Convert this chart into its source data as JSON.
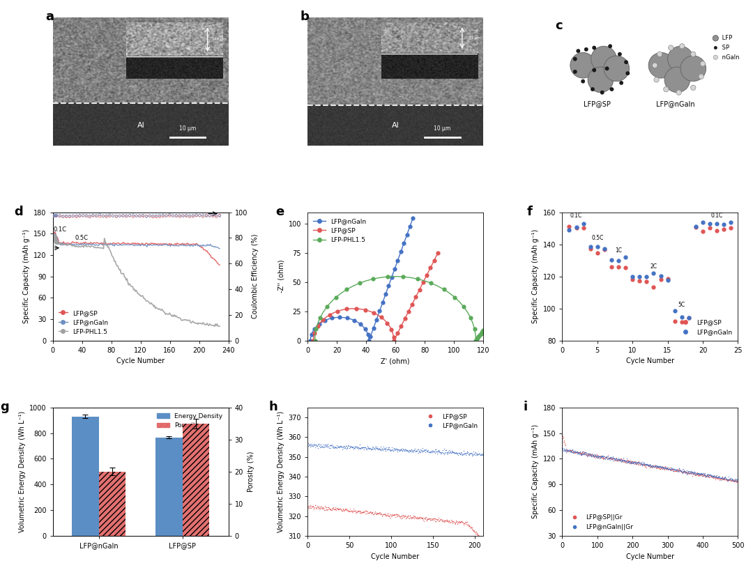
{
  "panel_d": {
    "xlabel": "Cycle Number",
    "ylabel_left": "Specific Capacity (mAh g⁻¹)",
    "ylabel_right": "Coulombic Efficiency (%)",
    "xlim": [
      0,
      240
    ],
    "ylim_left": [
      0,
      180
    ],
    "ylim_right": [
      0,
      100
    ],
    "yticks_left": [
      0,
      30,
      60,
      90,
      120,
      150,
      180
    ],
    "yticks_right": [
      0,
      20,
      40,
      60,
      80,
      100
    ],
    "xticks": [
      0,
      40,
      80,
      120,
      160,
      200,
      240
    ],
    "colors": [
      "#e05555",
      "#7090c0",
      "#a0a0a0"
    ]
  },
  "panel_e": {
    "xlabel": "Z' (ohm)",
    "ylabel": "-Z'' (ohm)",
    "xlim": [
      0,
      120
    ],
    "ylim": [
      0,
      110
    ],
    "yticks": [
      0,
      25,
      50,
      75,
      100
    ],
    "xticks": [
      0,
      20,
      40,
      60,
      80,
      100,
      120
    ],
    "legend": [
      "LFP@nGaIn",
      "LFP@SP",
      "LFP-PHL1.5"
    ],
    "colors": [
      "#4472c4",
      "#e05555",
      "#5aaa5a"
    ]
  },
  "panel_f": {
    "xlabel": "Cycle Number",
    "ylabel": "Specific Capacity (mAh g⁻¹)",
    "xlim": [
      0,
      25
    ],
    "ylim": [
      80,
      160
    ],
    "yticks": [
      80,
      100,
      120,
      140,
      160
    ],
    "xticks": [
      0,
      5,
      10,
      15,
      20,
      25
    ],
    "rate_labels": [
      "0.1C",
      "0.5C",
      "1C",
      "2C",
      "5C",
      "0.1C"
    ],
    "legend": [
      "LFP@SP",
      "LFP@nGaIn"
    ],
    "colors": [
      "#e05555",
      "#4472c4"
    ]
  },
  "panel_g": {
    "categories": [
      "LFP@nGaIn",
      "LFP@SP"
    ],
    "energy_density": [
      930,
      765
    ],
    "energy_density_errors": [
      12,
      8
    ],
    "porosity_vals": [
      20,
      35
    ],
    "porosity_errors": [
      1.2,
      1.5
    ],
    "ylabel_left": "Volumetric Energy Density (Wh L⁻¹)",
    "ylabel_right": "Porosity (%)",
    "ylim_left": [
      0,
      1000
    ],
    "ylim_right": [
      0,
      40
    ],
    "yticks_left": [
      0,
      200,
      400,
      600,
      800,
      1000
    ],
    "yticks_right": [
      0,
      10,
      20,
      30,
      40
    ],
    "colors_blue": "#5b8ec4",
    "colors_red": "#e06060"
  },
  "panel_h": {
    "xlabel": "Cycle Number",
    "ylabel": "Volumetric Energy Density (Wh L⁻¹)",
    "xlim": [
      0,
      210
    ],
    "ylim": [
      310,
      375
    ],
    "yticks": [
      310,
      320,
      330,
      340,
      350,
      360,
      370
    ],
    "xticks": [
      0,
      50,
      100,
      150,
      200
    ],
    "legend": [
      "LFP@SP",
      "LFP@nGaIn"
    ],
    "colors": [
      "#e05555",
      "#4472c4"
    ]
  },
  "panel_i": {
    "xlabel": "Cycle Number",
    "ylabel": "Specific Capacity (mAh g⁻¹)",
    "xlim": [
      0,
      500
    ],
    "ylim": [
      30,
      180
    ],
    "yticks": [
      30,
      60,
      90,
      120,
      150,
      180
    ],
    "xticks": [
      0,
      100,
      200,
      300,
      400,
      500
    ],
    "legend": [
      "LFP@SP||Gr",
      "LFP@nGaIn||Gr"
    ],
    "colors": [
      "#e05555",
      "#4472c4"
    ]
  },
  "bg_color": "#ffffff",
  "panel_label_fontsize": 13,
  "axis_label_fontsize": 7,
  "tick_fontsize": 7,
  "legend_fontsize": 6.5
}
